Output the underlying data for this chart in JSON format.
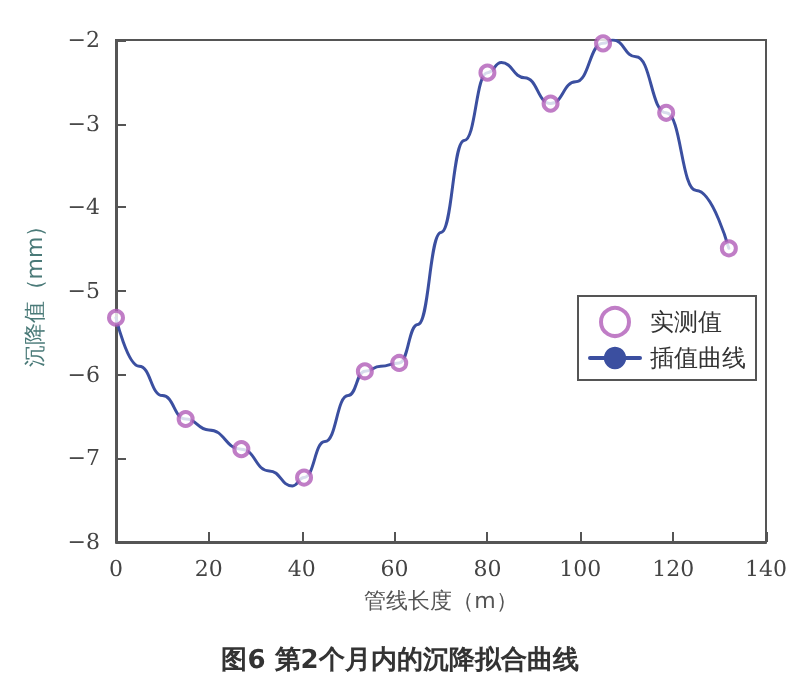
{
  "chart_data": {
    "type": "line",
    "title": "图6 第2个月内的沉降拟合曲线",
    "xlabel": "管线长度（m）",
    "ylabel": "沉降值（mm）",
    "xlim": [
      0,
      140
    ],
    "xticks": [
      0,
      20,
      40,
      60,
      80,
      100,
      120,
      140
    ],
    "ylim": [
      -8,
      -2
    ],
    "yticks": [
      -8,
      -7,
      -6,
      -5,
      -4,
      -3,
      -2
    ],
    "grid": false,
    "legend": "right",
    "series": [
      {
        "name": "实测值",
        "type": "scatter",
        "marker": "circle",
        "color": "#b05cb8",
        "x": [
          0,
          15,
          27,
          40.5,
          53.6,
          61,
          80,
          93.6,
          104.9,
          118.5,
          132
        ],
        "values": [
          -5.32,
          -6.53,
          -6.89,
          -7.23,
          -5.96,
          -5.86,
          -2.39,
          -2.76,
          -2.04,
          -2.87,
          -4.49
        ]
      },
      {
        "name": "插值曲线",
        "type": "line",
        "marker": "none",
        "line_style": "solid",
        "color": "#3b4fa0",
        "x": [
          0,
          5,
          10,
          15,
          20,
          27,
          33,
          38,
          40.5,
          45,
          50,
          53.6,
          57,
          61,
          65,
          70,
          75,
          80,
          83,
          88,
          93.6,
          99,
          104.9,
          107,
          112,
          118.5,
          125,
          132
        ],
        "values": [
          -5.32,
          -5.9,
          -6.25,
          -6.53,
          -6.66,
          -6.89,
          -7.15,
          -7.33,
          -7.23,
          -6.8,
          -6.25,
          -5.96,
          -5.9,
          -5.86,
          -5.4,
          -4.3,
          -3.2,
          -2.39,
          -2.27,
          -2.45,
          -2.76,
          -2.5,
          -2.04,
          -2.0,
          -2.2,
          -2.87,
          -3.8,
          -4.49
        ]
      }
    ]
  }
}
